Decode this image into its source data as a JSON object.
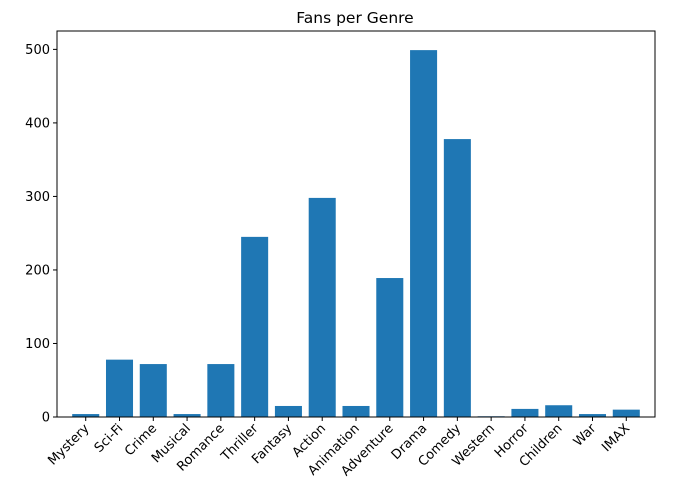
{
  "chart_data": {
    "type": "bar",
    "title": "Fans per Genre",
    "xlabel": "",
    "ylabel": "",
    "categories": [
      "Mystery",
      "Sci-Fi",
      "Crime",
      "Musical",
      "Romance",
      "Thriller",
      "Fantasy",
      "Action",
      "Animation",
      "Adventure",
      "Drama",
      "Comedy",
      "Western",
      "Horror",
      "Children",
      "War",
      "IMAX"
    ],
    "values": [
      4,
      78,
      72,
      4,
      72,
      245,
      15,
      298,
      15,
      189,
      499,
      378,
      1,
      11,
      16,
      4,
      10
    ],
    "ylim": [
      0,
      525
    ],
    "yticks": [
      "0",
      "100",
      "200",
      "300",
      "400",
      "500"
    ],
    "grid": false,
    "bar_color": "#1f77b4"
  }
}
